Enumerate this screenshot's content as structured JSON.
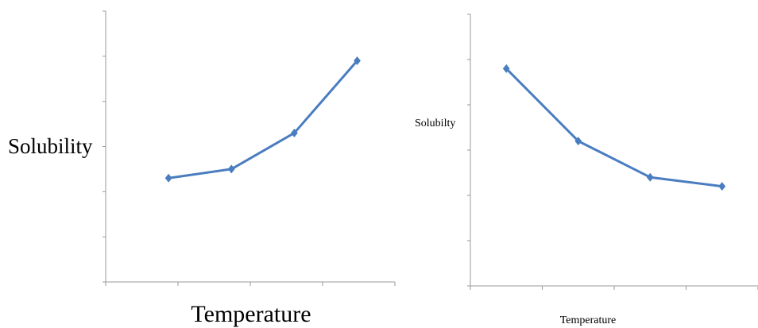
{
  "chart_data": [
    {
      "type": "line",
      "xlabel": "Temperature",
      "ylabel": "Solubility",
      "x": [
        1,
        2,
        3,
        4
      ],
      "values": [
        2.3,
        2.5,
        3.3,
        4.9
      ],
      "xlim": [
        0,
        4.6
      ],
      "ylim": [
        0,
        6
      ],
      "xticks": 4,
      "yticks": 6,
      "colors": {
        "series": "#4a7dc0",
        "axis": "#9a9a9a"
      }
    },
    {
      "type": "line",
      "xlabel": "Temperature",
      "ylabel": "Solubilty",
      "x": [
        1,
        2,
        3,
        4
      ],
      "values": [
        4.8,
        3.2,
        2.4,
        2.2
      ],
      "xlim": [
        0.5,
        4.5
      ],
      "ylim": [
        0,
        6
      ],
      "xticks": 4,
      "yticks": 6,
      "colors": {
        "series": "#4a7dc0",
        "axis": "#9a9a9a"
      }
    }
  ]
}
